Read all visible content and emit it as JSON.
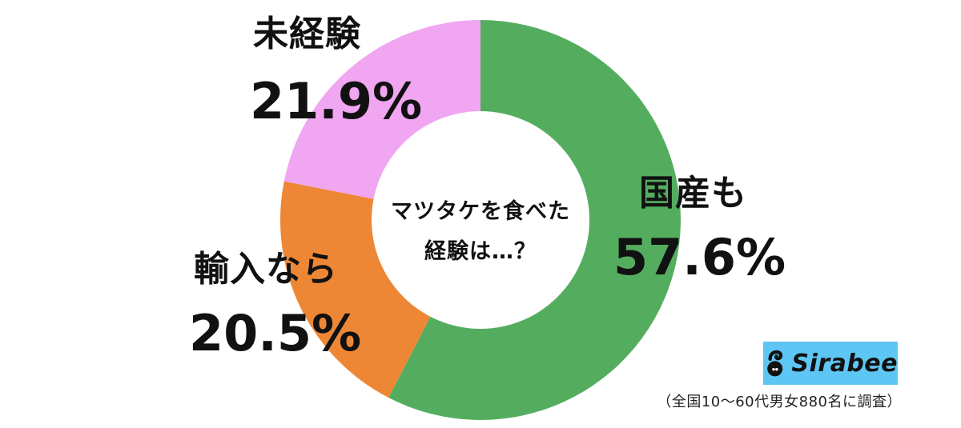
{
  "chart_data": {
    "type": "pie",
    "subtype": "donut",
    "title": "マツタケを食べた経験は…？",
    "categories": [
      "国産も",
      "輸入なら",
      "未経験"
    ],
    "values": [
      57.6,
      20.5,
      21.9
    ],
    "unit": "%",
    "colors": [
      "#54ad5f",
      "#ee8735",
      "#f0a6f0"
    ],
    "start_angle_deg": 0,
    "direction": "clockwise",
    "legend": "none (direct labels)"
  },
  "center": {
    "line1": "マツタケを食べた",
    "line2": "経験は…？"
  },
  "labels": {
    "domestic": {
      "name": "国産も",
      "pct": "57.6%"
    },
    "imported": {
      "name": "輸入なら",
      "pct": "20.5%"
    },
    "never": {
      "name": "未経験",
      "pct": "21.9%"
    }
  },
  "brand": {
    "name": "Sirabee",
    "bg": "#5ec6f4"
  },
  "source": "（全国10〜60代男女880名に調査）"
}
